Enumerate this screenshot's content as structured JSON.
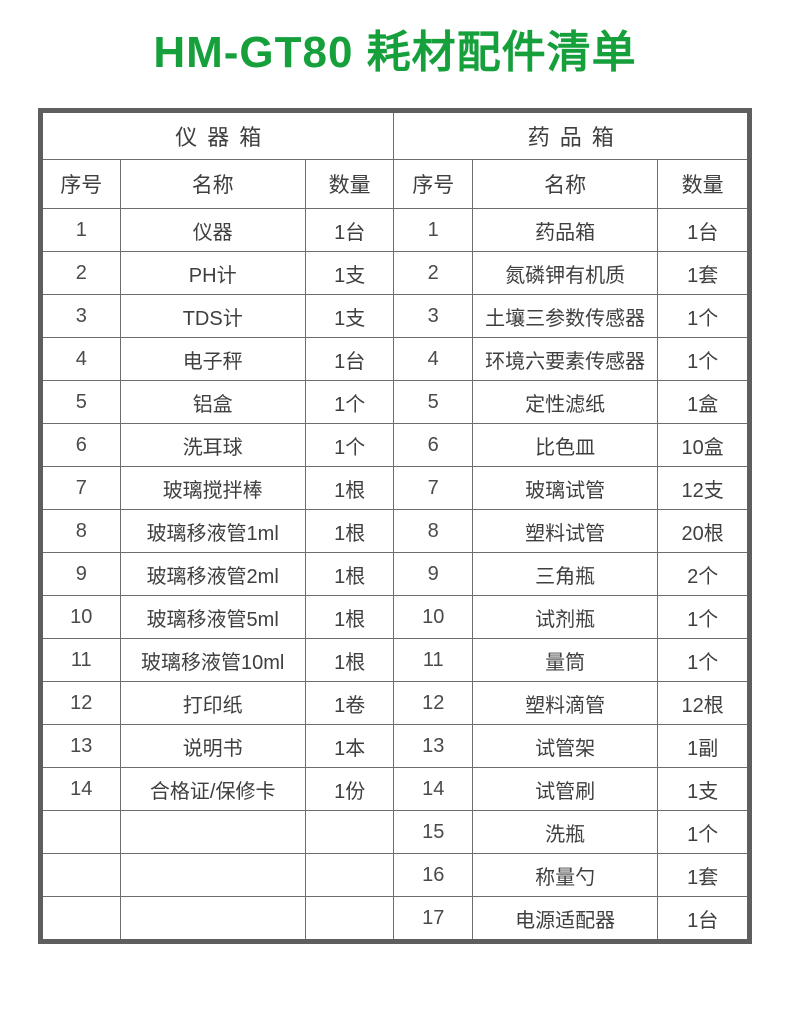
{
  "title": "HM-GT80 耗材配件清单",
  "colors": {
    "title_green": "#16a03c",
    "outer_border": "#5e5e5e",
    "inner_border": "#6d6d6d",
    "text": "#3f3f3f"
  },
  "table": {
    "groups": [
      {
        "label": "仪器箱"
      },
      {
        "label": "药品箱"
      }
    ],
    "columns": [
      "序号",
      "名称",
      "数量"
    ],
    "rows": [
      {
        "left": {
          "no": "1",
          "name": "仪器",
          "qty": "1台"
        },
        "right": {
          "no": "1",
          "name": "药品箱",
          "qty": "1台"
        }
      },
      {
        "left": {
          "no": "2",
          "name": "PH计",
          "qty": "1支"
        },
        "right": {
          "no": "2",
          "name": "氮磷钾有机质",
          "qty": "1套"
        }
      },
      {
        "left": {
          "no": "3",
          "name": "TDS计",
          "qty": "1支"
        },
        "right": {
          "no": "3",
          "name": "土壤三参数传感器",
          "qty": "1个"
        }
      },
      {
        "left": {
          "no": "4",
          "name": "电子秤",
          "qty": "1台"
        },
        "right": {
          "no": "4",
          "name": "环境六要素传感器",
          "qty": "1个"
        }
      },
      {
        "left": {
          "no": "5",
          "name": "铝盒",
          "qty": "1个"
        },
        "right": {
          "no": "5",
          "name": "定性滤纸",
          "qty": "1盒"
        }
      },
      {
        "left": {
          "no": "6",
          "name": "洗耳球",
          "qty": "1个"
        },
        "right": {
          "no": "6",
          "name": "比色皿",
          "qty": "10盒"
        }
      },
      {
        "left": {
          "no": "7",
          "name": "玻璃搅拌棒",
          "qty": "1根"
        },
        "right": {
          "no": "7",
          "name": "玻璃试管",
          "qty": "12支"
        }
      },
      {
        "left": {
          "no": "8",
          "name": "玻璃移液管1ml",
          "qty": "1根"
        },
        "right": {
          "no": "8",
          "name": "塑料试管",
          "qty": "20根"
        }
      },
      {
        "left": {
          "no": "9",
          "name": "玻璃移液管2ml",
          "qty": "1根"
        },
        "right": {
          "no": "9",
          "name": "三角瓶",
          "qty": "2个"
        }
      },
      {
        "left": {
          "no": "10",
          "name": "玻璃移液管5ml",
          "qty": "1根"
        },
        "right": {
          "no": "10",
          "name": "试剂瓶",
          "qty": "1个"
        }
      },
      {
        "left": {
          "no": "11",
          "name": "玻璃移液管10ml",
          "qty": "1根"
        },
        "right": {
          "no": "11",
          "name": "量筒",
          "qty": "1个"
        }
      },
      {
        "left": {
          "no": "12",
          "name": "打印纸",
          "qty": "1卷"
        },
        "right": {
          "no": "12",
          "name": "塑料滴管",
          "qty": "12根"
        }
      },
      {
        "left": {
          "no": "13",
          "name": "说明书",
          "qty": "1本"
        },
        "right": {
          "no": "13",
          "name": "试管架",
          "qty": "1副"
        }
      },
      {
        "left": {
          "no": "14",
          "name": "合格证/保修卡",
          "qty": "1份"
        },
        "right": {
          "no": "14",
          "name": "试管刷",
          "qty": "1支"
        }
      },
      {
        "left": {
          "no": "",
          "name": "",
          "qty": ""
        },
        "right": {
          "no": "15",
          "name": "洗瓶",
          "qty": "1个"
        }
      },
      {
        "left": {
          "no": "",
          "name": "",
          "qty": ""
        },
        "right": {
          "no": "16",
          "name": "称量勺",
          "qty": "1套"
        }
      },
      {
        "left": {
          "no": "",
          "name": "",
          "qty": ""
        },
        "right": {
          "no": "17",
          "name": "电源适配器",
          "qty": "1台"
        }
      }
    ]
  }
}
